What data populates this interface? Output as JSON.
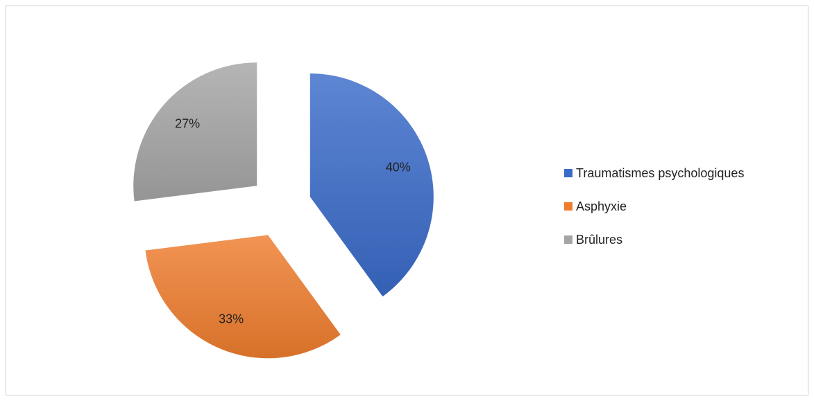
{
  "chart_data": {
    "type": "pie",
    "categories": [
      "Traumatismes psychologiques",
      "Asphyxie",
      "Brûlures"
    ],
    "values": [
      40,
      33,
      27
    ],
    "value_labels": [
      "40%",
      "33%",
      "27%"
    ],
    "colors": [
      "#3a6bc9",
      "#ef7d2e",
      "#a5a5a5"
    ],
    "exploded": true,
    "legend": "right"
  }
}
